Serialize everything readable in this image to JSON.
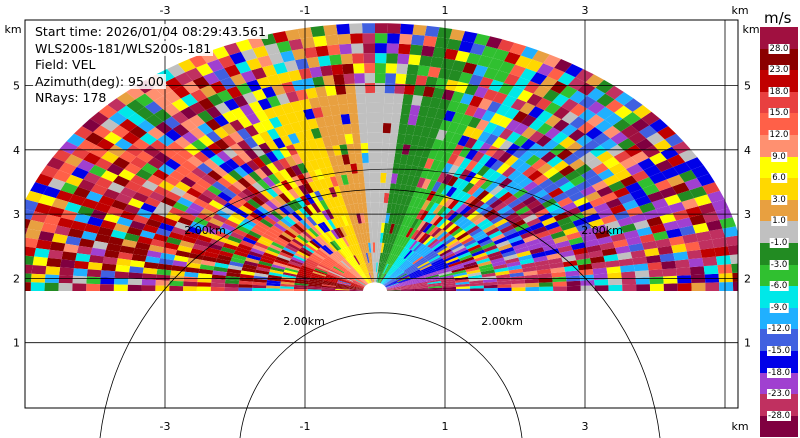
{
  "info": {
    "start_time": "Start time: 2026/01/04 08:29:43.561",
    "instrument": "WLS200s-181/WLS200s-181",
    "field": "Field: VEL",
    "azimuth": "Azimuth(deg): 95.00",
    "nrays": "NRays: 178"
  },
  "axes": {
    "x_unit": "km",
    "y_unit": "km",
    "x_ticks": [
      "-3",
      "-1",
      "1",
      "3"
    ],
    "y_ticks": [
      "1",
      "2",
      "3",
      "4",
      "5"
    ],
    "range_ring_labels": [
      "2.00km",
      "2.00km",
      "2.00km",
      "2.00km"
    ]
  },
  "colorbar": {
    "unit": "m/s",
    "levels": [
      "28.0",
      "23.0",
      "18.0",
      "15.0",
      "12.0",
      "9.0",
      "6.0",
      "3.0",
      "1.0",
      "-1.0",
      "-3.0",
      "-6.0",
      "-9.0",
      "-12.0",
      "-15.0",
      "-18.0",
      "-23.0",
      "-28.0"
    ],
    "colors": [
      "#a01040",
      "#8b0000",
      "#c00000",
      "#e84040",
      "#ff6048",
      "#ff9070",
      "#ffff00",
      "#ffd800",
      "#e8a040",
      "#c0c0c0",
      "#228b22",
      "#30c030",
      "#00e8e8",
      "#20b0ff",
      "#4060e0",
      "#0000e8",
      "#a040d0",
      "#c03060",
      "#800040"
    ]
  }
}
